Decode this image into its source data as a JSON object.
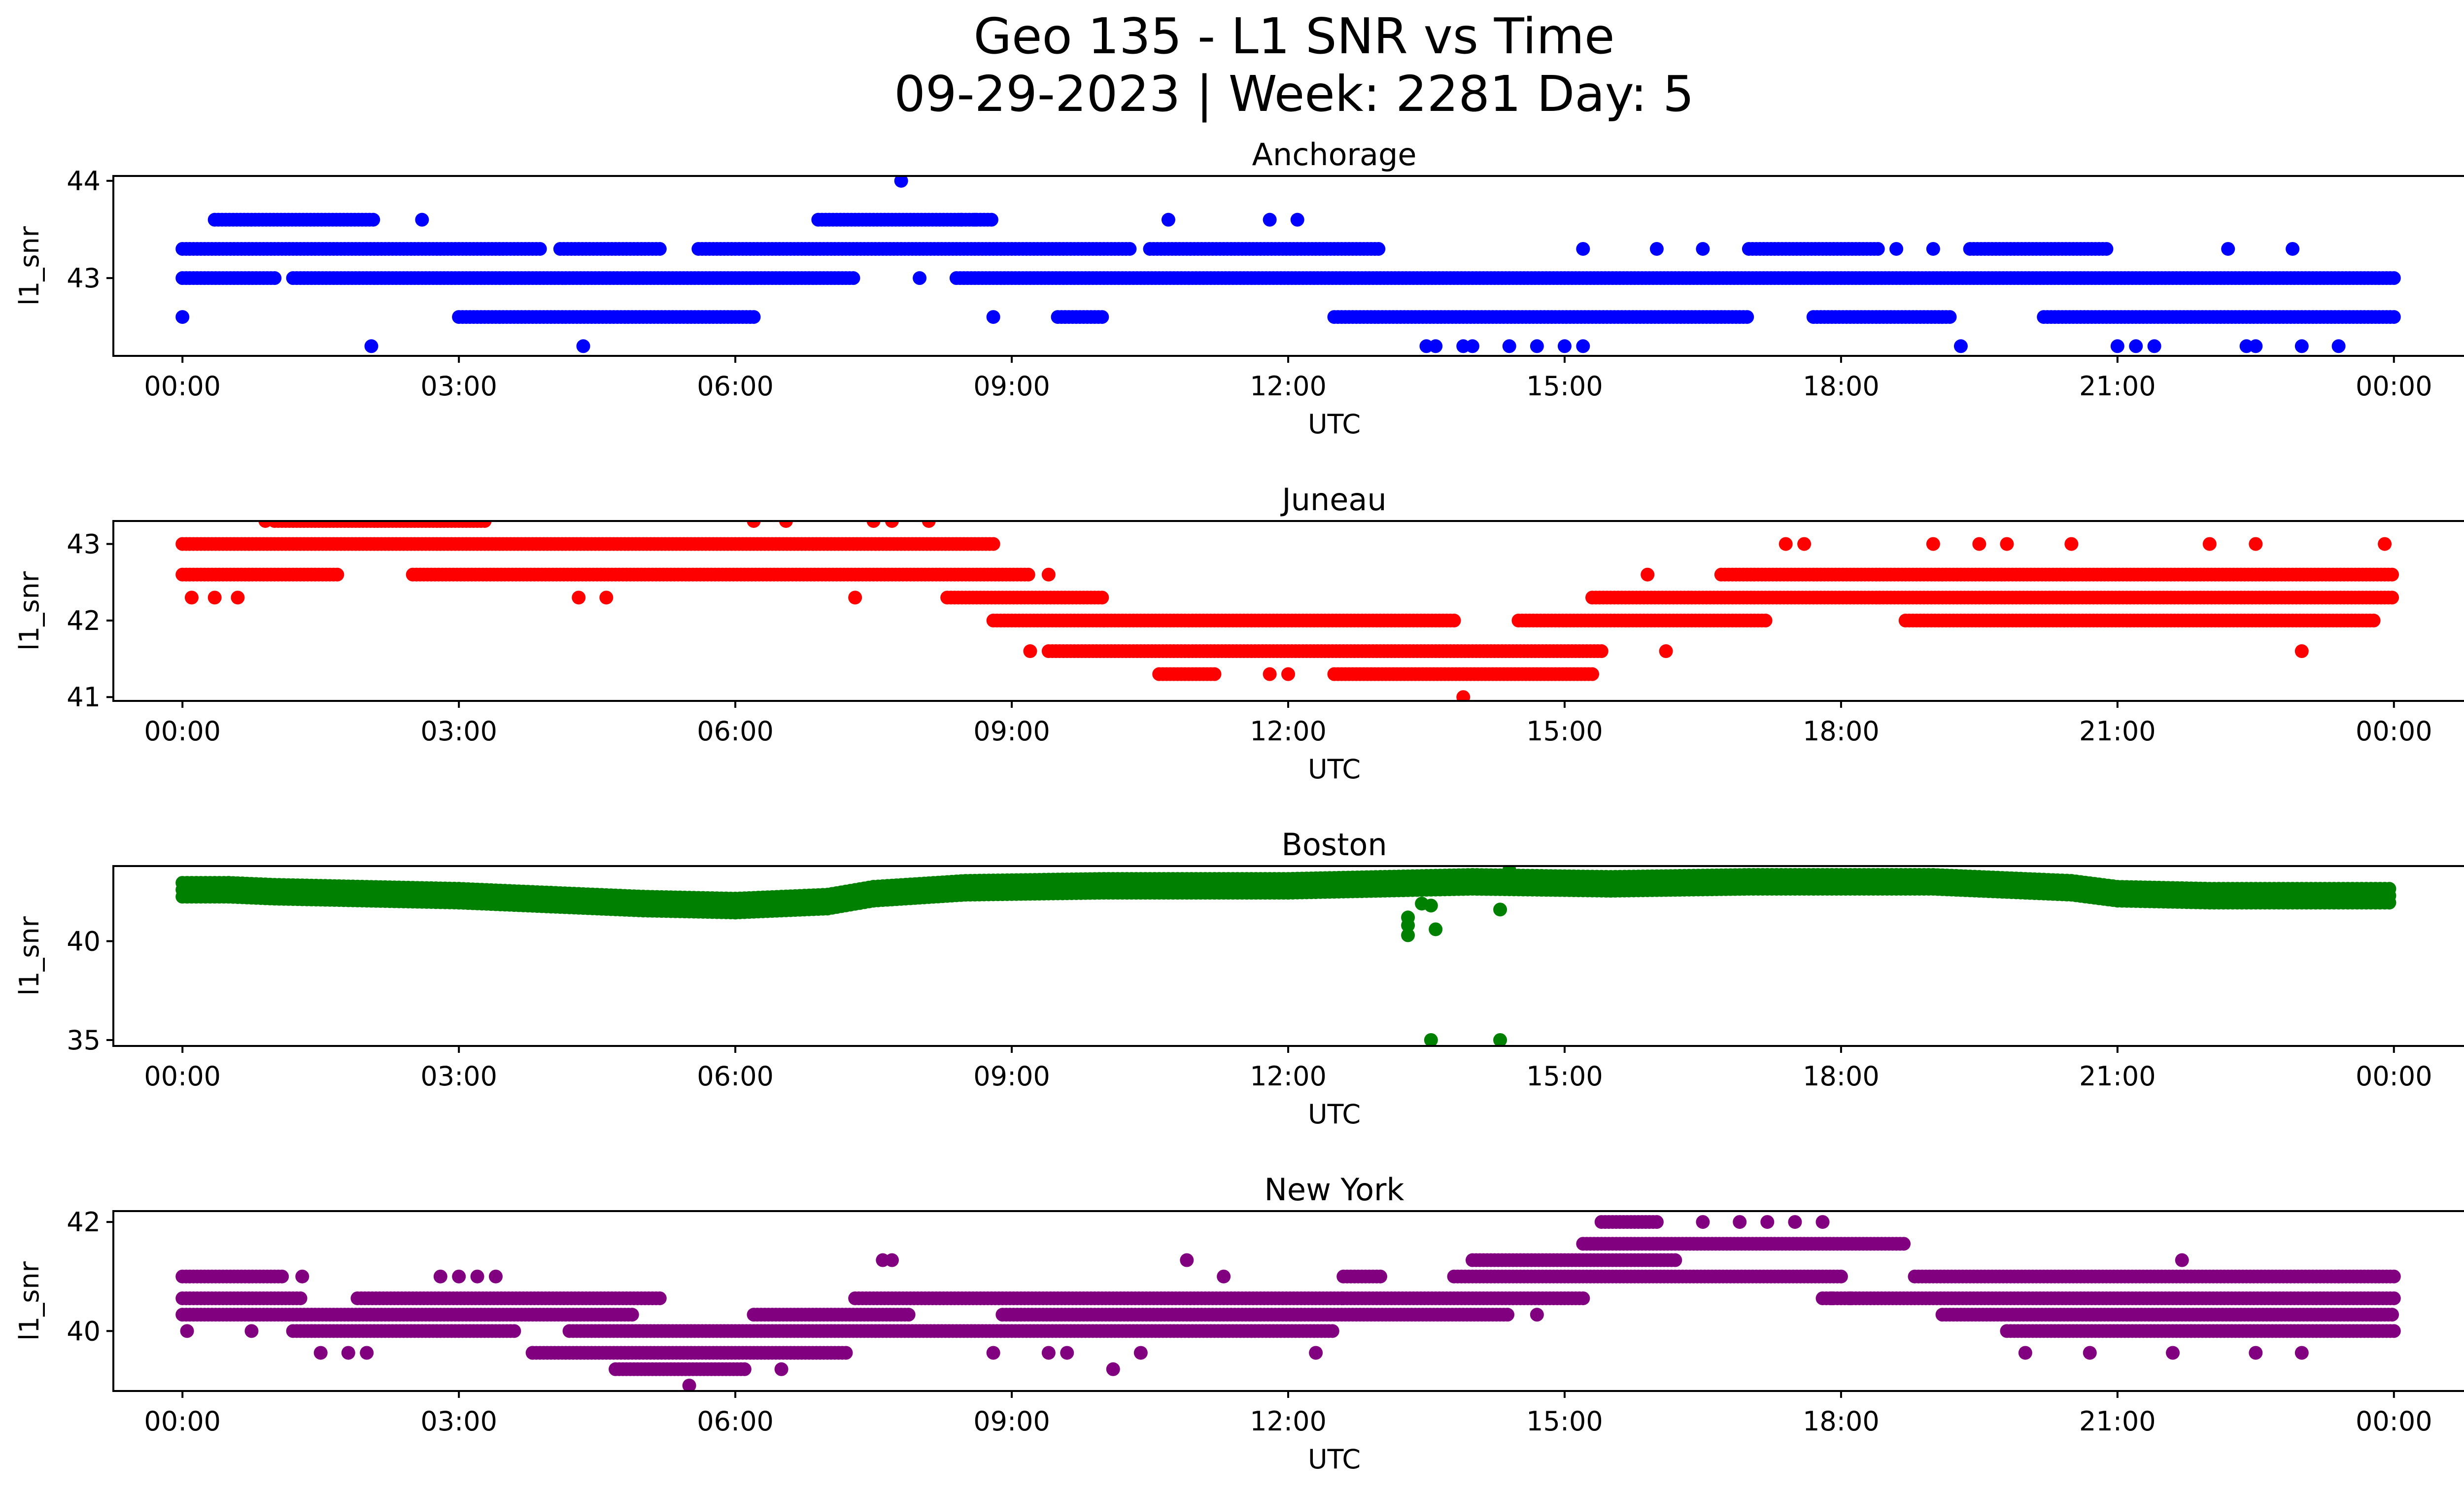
{
  "title_line1": "Geo 135 - L1 SNR vs Time",
  "title_line2": "09-29-2023 | Week: 2281 Day: 5",
  "x_tick_labels": [
    "00:00",
    "03:00",
    "06:00",
    "09:00",
    "12:00",
    "15:00",
    "18:00",
    "21:00",
    "00:00"
  ],
  "xlabel": "UTC",
  "ylabel": "l1_snr",
  "chart_data": [
    {
      "type": "scatter",
      "title": "Anchorage",
      "color": "#0000ff",
      "xlabel": "UTC",
      "ylabel": "l1_snr",
      "x_range_hours": [
        -0.75,
        25.75
      ],
      "ylim": [
        42.2,
        44.05
      ],
      "yticks": [
        43,
        44
      ],
      "bands": [
        {
          "y": 43.0,
          "segments": [
            [
              0.0,
              1.0
            ],
            [
              1.2,
              7.3
            ],
            [
              8.4,
              24.0
            ]
          ]
        },
        {
          "y": 43.3,
          "segments": [
            [
              0.0,
              3.9
            ],
            [
              4.1,
              5.2
            ],
            [
              5.6,
              10.3
            ],
            [
              10.5,
              13.0
            ],
            [
              17.0,
              18.4
            ],
            [
              19.4,
              20.9
            ]
          ]
        },
        {
          "y": 42.6,
          "segments": [
            [
              3.0,
              6.2
            ],
            [
              9.5,
              10.0
            ],
            [
              12.5,
              17.0
            ],
            [
              17.7,
              19.2
            ],
            [
              20.2,
              24.0
            ]
          ]
        },
        {
          "y": 43.6,
          "segments": [
            [
              0.35,
              2.1
            ],
            [
              6.9,
              8.8
            ]
          ]
        }
      ],
      "points": [
        [
          0.0,
          42.6
        ],
        [
          2.05,
          42.3
        ],
        [
          2.6,
          43.6
        ],
        [
          4.35,
          42.3
        ],
        [
          7.8,
          44.0
        ],
        [
          8.0,
          43.0
        ],
        [
          8.45,
          43.6
        ],
        [
          8.6,
          43.6
        ],
        [
          8.8,
          42.6
        ],
        [
          10.7,
          43.6
        ],
        [
          11.8,
          43.6
        ],
        [
          12.1,
          43.6
        ],
        [
          13.5,
          42.3
        ],
        [
          13.6,
          42.3
        ],
        [
          13.9,
          42.3
        ],
        [
          14.0,
          42.3
        ],
        [
          14.4,
          42.3
        ],
        [
          14.7,
          42.3
        ],
        [
          15.0,
          42.3
        ],
        [
          15.2,
          42.3
        ],
        [
          15.2,
          43.3
        ],
        [
          16.0,
          43.3
        ],
        [
          16.5,
          43.3
        ],
        [
          18.6,
          43.3
        ],
        [
          19.0,
          43.3
        ],
        [
          19.3,
          42.3
        ],
        [
          21.0,
          42.3
        ],
        [
          21.2,
          42.3
        ],
        [
          21.4,
          42.3
        ],
        [
          22.2,
          43.3
        ],
        [
          22.4,
          42.3
        ],
        [
          22.5,
          42.3
        ],
        [
          22.9,
          43.3
        ],
        [
          23.0,
          42.3
        ],
        [
          23.4,
          42.3
        ]
      ]
    },
    {
      "type": "scatter",
      "title": "Juneau",
      "color": "#ff0000",
      "xlabel": "UTC",
      "ylabel": "l1_snr",
      "x_range_hours": [
        -0.75,
        25.75
      ],
      "ylim": [
        40.95,
        43.3
      ],
      "yticks": [
        41,
        42,
        43
      ],
      "bands": [
        {
          "y": 43.0,
          "segments": [
            [
              0.0,
              8.8
            ]
          ]
        },
        {
          "y": 42.6,
          "segments": [
            [
              0.0,
              1.7
            ],
            [
              2.5,
              9.2
            ]
          ]
        },
        {
          "y": 42.3,
          "segments": [
            [
              8.3,
              10.0
            ],
            [
              15.3,
              24.0
            ]
          ]
        },
        {
          "y": 42.0,
          "segments": [
            [
              8.8,
              13.8
            ],
            [
              14.5,
              17.2
            ],
            [
              18.7,
              23.8
            ]
          ]
        },
        {
          "y": 41.6,
          "segments": [
            [
              9.4,
              15.4
            ]
          ]
        },
        {
          "y": 41.3,
          "segments": [
            [
              10.6,
              11.2
            ],
            [
              12.5,
              15.3
            ]
          ]
        },
        {
          "y": 42.6,
          "segments": [
            [
              16.7,
              24.0
            ]
          ]
        },
        {
          "y": 43.3,
          "segments": [
            [
              1.0,
              3.3
            ]
          ]
        }
      ],
      "points": [
        [
          0.1,
          42.3
        ],
        [
          0.35,
          42.3
        ],
        [
          0.6,
          42.3
        ],
        [
          0.9,
          43.3
        ],
        [
          4.3,
          42.3
        ],
        [
          4.6,
          42.3
        ],
        [
          6.2,
          43.3
        ],
        [
          6.55,
          43.3
        ],
        [
          7.3,
          42.3
        ],
        [
          7.5,
          43.3
        ],
        [
          7.7,
          43.3
        ],
        [
          8.1,
          43.3
        ],
        [
          9.2,
          41.6
        ],
        [
          9.4,
          42.6
        ],
        [
          10.0,
          42.0
        ],
        [
          11.8,
          41.3
        ],
        [
          12.0,
          41.3
        ],
        [
          13.9,
          41.0
        ],
        [
          15.9,
          42.6
        ],
        [
          16.1,
          41.6
        ],
        [
          17.4,
          43.0
        ],
        [
          17.6,
          43.0
        ],
        [
          19.0,
          43.0
        ],
        [
          19.5,
          43.0
        ],
        [
          19.8,
          43.0
        ],
        [
          20.5,
          43.0
        ],
        [
          22.0,
          43.0
        ],
        [
          22.5,
          43.0
        ],
        [
          23.0,
          41.6
        ],
        [
          23.9,
          43.0
        ]
      ]
    },
    {
      "type": "scatter",
      "title": "Boston",
      "color": "#008000",
      "xlabel": "UTC",
      "ylabel": "l1_snr",
      "x_range_hours": [
        -0.75,
        25.75
      ],
      "ylim": [
        34.7,
        43.8
      ],
      "yticks": [
        35,
        40
      ],
      "series_line": [
        [
          0.0,
          42.6
        ],
        [
          0.5,
          42.6
        ],
        [
          1.0,
          42.5
        ],
        [
          2.0,
          42.4
        ],
        [
          3.0,
          42.3
        ],
        [
          4.0,
          42.1
        ],
        [
          5.0,
          41.9
        ],
        [
          6.0,
          41.8
        ],
        [
          7.0,
          42.0
        ],
        [
          7.5,
          42.4
        ],
        [
          8.5,
          42.7
        ],
        [
          10.0,
          42.8
        ],
        [
          12.0,
          42.8
        ],
        [
          14.0,
          43.0
        ],
        [
          15.5,
          42.9
        ],
        [
          17.0,
          43.0
        ],
        [
          19.0,
          43.0
        ],
        [
          20.5,
          42.7
        ],
        [
          21.0,
          42.4
        ],
        [
          22.0,
          42.3
        ],
        [
          24.0,
          42.3
        ]
      ],
      "points": [
        [
          13.3,
          41.2
        ],
        [
          13.3,
          40.8
        ],
        [
          13.3,
          40.3
        ],
        [
          13.45,
          41.9
        ],
        [
          13.55,
          41.8
        ],
        [
          13.6,
          40.6
        ],
        [
          13.55,
          35.0
        ],
        [
          14.3,
          41.6
        ],
        [
          14.3,
          35.0
        ],
        [
          14.4,
          43.6
        ]
      ]
    },
    {
      "type": "scatter",
      "title": "New York",
      "color": "#800080",
      "xlabel": "UTC",
      "ylabel": "l1_snr",
      "x_range_hours": [
        -0.75,
        25.75
      ],
      "ylim": [
        38.9,
        42.2
      ],
      "yticks": [
        40,
        42
      ],
      "bands": [
        {
          "y": 40.6,
          "segments": [
            [
              0.0,
              1.3
            ],
            [
              1.9,
              5.2
            ],
            [
              7.3,
              12.6
            ],
            [
              12.6,
              15.2
            ],
            [
              17.8,
              24.0
            ]
          ]
        },
        {
          "y": 40.3,
          "segments": [
            [
              0.0,
              4.9
            ],
            [
              6.2,
              7.9
            ],
            [
              8.9,
              14.4
            ],
            [
              19.1,
              24.0
            ]
          ]
        },
        {
          "y": 40.0,
          "segments": [
            [
              1.2,
              3.6
            ],
            [
              4.2,
              12.5
            ],
            [
              19.8,
              24.0
            ]
          ]
        },
        {
          "y": 39.6,
          "segments": [
            [
              3.8,
              7.2
            ]
          ]
        },
        {
          "y": 39.3,
          "segments": [
            [
              4.7,
              6.1
            ]
          ]
        },
        {
          "y": 41.0,
          "segments": [
            [
              0.0,
              1.1
            ],
            [
              12.6,
              13.0
            ],
            [
              13.8,
              18.0
            ],
            [
              18.8,
              24.0
            ]
          ]
        },
        {
          "y": 41.3,
          "segments": [
            [
              14.0,
              16.2
            ]
          ]
        },
        {
          "y": 41.6,
          "segments": [
            [
              15.2,
              18.7
            ]
          ]
        },
        {
          "y": 42.0,
          "segments": [
            [
              15.4,
              16.0
            ]
          ]
        }
      ],
      "points": [
        [
          0.05,
          40.0
        ],
        [
          0.75,
          40.0
        ],
        [
          1.3,
          41.0
        ],
        [
          1.5,
          39.6
        ],
        [
          1.8,
          39.6
        ],
        [
          2.0,
          39.6
        ],
        [
          2.8,
          41.0
        ],
        [
          3.0,
          41.0
        ],
        [
          3.2,
          41.0
        ],
        [
          3.4,
          41.0
        ],
        [
          3.8,
          39.6
        ],
        [
          5.5,
          39.0
        ],
        [
          6.5,
          39.3
        ],
        [
          7.6,
          41.3
        ],
        [
          7.7,
          41.3
        ],
        [
          8.8,
          39.6
        ],
        [
          9.4,
          39.6
        ],
        [
          9.6,
          39.6
        ],
        [
          10.1,
          39.3
        ],
        [
          10.4,
          39.6
        ],
        [
          10.9,
          41.3
        ],
        [
          11.3,
          41.0
        ],
        [
          12.3,
          39.6
        ],
        [
          14.7,
          40.3
        ],
        [
          16.5,
          42.0
        ],
        [
          16.9,
          42.0
        ],
        [
          17.2,
          42.0
        ],
        [
          17.5,
          42.0
        ],
        [
          17.8,
          42.0
        ],
        [
          17.9,
          40.6
        ],
        [
          18.1,
          40.6
        ],
        [
          20.0,
          39.6
        ],
        [
          20.7,
          39.6
        ],
        [
          21.6,
          39.6
        ],
        [
          21.7,
          41.3
        ],
        [
          22.5,
          39.6
        ],
        [
          23.0,
          39.6
        ],
        [
          23.4,
          41.0
        ]
      ]
    }
  ]
}
